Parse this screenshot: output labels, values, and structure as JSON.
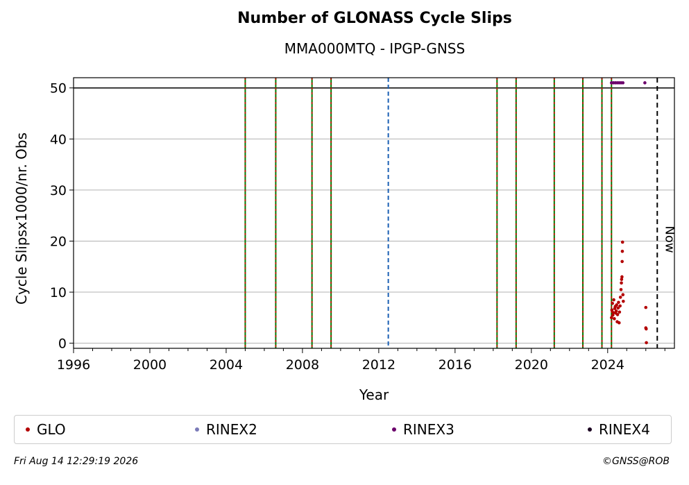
{
  "chart_data": {
    "type": "scatter",
    "title": "Number of GLONASS Cycle Slips",
    "subtitle": "MMA000MTQ - IPGP-GNSS",
    "xlabel": "Year",
    "ylabel": "Cycle Slipsx1000/nr. Obs",
    "xlim": [
      1996,
      2027.5
    ],
    "ylim": [
      -1,
      52
    ],
    "x_ticks": [
      "1996",
      "2000",
      "2004",
      "2008",
      "2012",
      "2016",
      "2020",
      "2024"
    ],
    "y_ticks": [
      "0",
      "10",
      "20",
      "30",
      "40",
      "50"
    ],
    "grid": "horizontal",
    "reference_line_y": 50,
    "event_lines_green_red": [
      2005.0,
      2006.6,
      2008.5,
      2009.5,
      2018.2,
      2019.2,
      2021.2,
      2022.7,
      2023.7,
      2024.2
    ],
    "event_lines_blue": [
      2012.5
    ],
    "now_line": 2026.6,
    "now_label": "Now",
    "series": [
      {
        "name": "GLO",
        "color": "#b30000",
        "points": [
          [
            2024.2,
            5.0
          ],
          [
            2024.22,
            6.5
          ],
          [
            2024.25,
            7.8
          ],
          [
            2024.27,
            5.5
          ],
          [
            2024.3,
            6.0
          ],
          [
            2024.32,
            8.5
          ],
          [
            2024.35,
            4.8
          ],
          [
            2024.37,
            6.8
          ],
          [
            2024.4,
            7.2
          ],
          [
            2024.42,
            5.9
          ],
          [
            2024.45,
            6.3
          ],
          [
            2024.47,
            7.5
          ],
          [
            2024.5,
            4.2
          ],
          [
            2024.52,
            5.6
          ],
          [
            2024.55,
            6.9
          ],
          [
            2024.57,
            8.0
          ],
          [
            2024.6,
            4.0
          ],
          [
            2024.62,
            6.1
          ],
          [
            2024.65,
            7.3
          ],
          [
            2024.67,
            9.0
          ],
          [
            2024.7,
            10.5
          ],
          [
            2024.72,
            11.8
          ],
          [
            2024.73,
            12.5
          ],
          [
            2024.75,
            13.0
          ],
          [
            2024.76,
            16.0
          ],
          [
            2024.77,
            18.0
          ],
          [
            2024.78,
            19.8
          ],
          [
            2024.8,
            9.5
          ],
          [
            2024.82,
            8.2
          ],
          [
            2026.0,
            7.0
          ],
          [
            2026.0,
            3.0
          ],
          [
            2026.02,
            2.8
          ],
          [
            2026.03,
            0.1
          ]
        ]
      },
      {
        "name": "RINEX2",
        "color": "#7b7bb8",
        "points": []
      },
      {
        "name": "RINEX3",
        "color": "#6b006b",
        "points": [
          [
            2024.2,
            51
          ],
          [
            2024.3,
            51
          ],
          [
            2024.4,
            51
          ],
          [
            2024.5,
            51
          ],
          [
            2024.6,
            51
          ],
          [
            2024.7,
            51
          ],
          [
            2024.8,
            51
          ],
          [
            2025.95,
            51
          ]
        ]
      },
      {
        "name": "RINEX4",
        "color": "#1a0020",
        "points": []
      }
    ]
  },
  "footer": {
    "timestamp": "Fri Aug 14 12:29:19 2026",
    "copyright": "©GNSS@ROB"
  }
}
